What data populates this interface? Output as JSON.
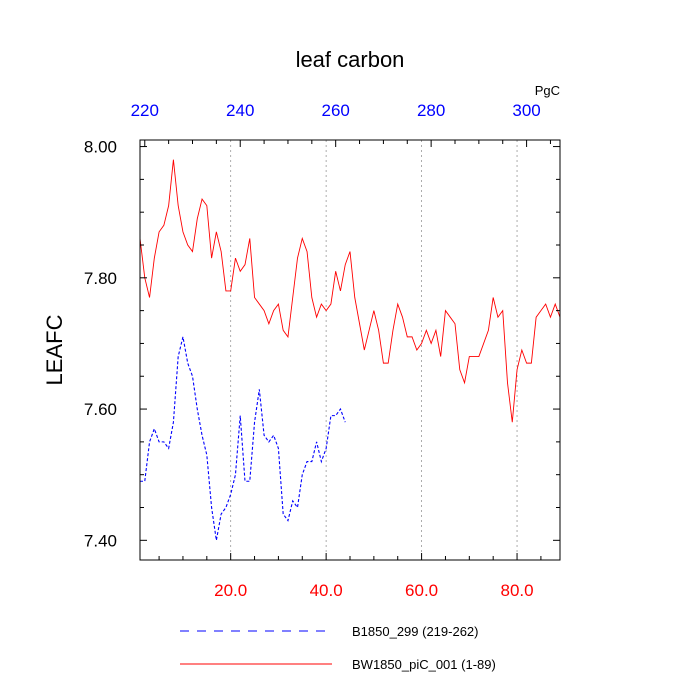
{
  "chart_data": {
    "type": "line",
    "title": "leaf carbon",
    "ylabel": "LEAFC",
    "top_axis_units": "PgC",
    "ylim": [
      7.37,
      8.01
    ],
    "xlim": [
      1,
      89
    ],
    "top_xlim": [
      219,
      307
    ],
    "yticks": [
      {
        "value": 7.4,
        "label": "7.40"
      },
      {
        "value": 7.6,
        "label": "7.60"
      },
      {
        "value": 7.8,
        "label": "7.80"
      },
      {
        "value": 8.0,
        "label": "8.00"
      }
    ],
    "xticks_bottom": [
      {
        "value": 20,
        "label": "20.0"
      },
      {
        "value": 40,
        "label": "40.0"
      },
      {
        "value": 60,
        "label": "60.0"
      },
      {
        "value": 80,
        "label": "80.0"
      }
    ],
    "xticks_top": [
      {
        "value": 220,
        "label": "220"
      },
      {
        "value": 240,
        "label": "240"
      },
      {
        "value": 260,
        "label": "260"
      },
      {
        "value": 280,
        "label": "280"
      },
      {
        "value": 300,
        "label": "300"
      }
    ],
    "grid_x": [
      20,
      40,
      60,
      80
    ],
    "colors": {
      "bottom_axis_labels": "#ff0000",
      "top_axis_labels": "#0000ff"
    },
    "legend_placement": "bottom",
    "series": [
      {
        "name": "B1850_299 (219-262)",
        "color": "#0000ff",
        "dash": "dashed",
        "axis": "top",
        "x": [
          219,
          220,
          221,
          222,
          223,
          224,
          225,
          226,
          227,
          228,
          229,
          230,
          231,
          232,
          233,
          234,
          235,
          236,
          237,
          238,
          239,
          240,
          241,
          242,
          243,
          244,
          245,
          246,
          247,
          248,
          249,
          250,
          251,
          252,
          253,
          254,
          255,
          256,
          257,
          258,
          259,
          260,
          261,
          262
        ],
        "y": [
          7.49,
          7.49,
          7.55,
          7.57,
          7.55,
          7.55,
          7.54,
          7.58,
          7.68,
          7.71,
          7.67,
          7.65,
          7.6,
          7.56,
          7.53,
          7.45,
          7.4,
          7.44,
          7.45,
          7.47,
          7.5,
          7.59,
          7.49,
          7.49,
          7.58,
          7.63,
          7.56,
          7.55,
          7.56,
          7.54,
          7.44,
          7.43,
          7.46,
          7.45,
          7.5,
          7.52,
          7.52,
          7.55,
          7.52,
          7.54,
          7.59,
          7.59,
          7.6,
          7.58
        ]
      },
      {
        "name": "BW1850_piC_001 (1-89)",
        "color": "#ff0000",
        "dash": "solid",
        "axis": "bottom",
        "x": [
          1,
          2,
          3,
          4,
          5,
          6,
          7,
          8,
          9,
          10,
          11,
          12,
          13,
          14,
          15,
          16,
          17,
          18,
          19,
          20,
          21,
          22,
          23,
          24,
          25,
          26,
          27,
          28,
          29,
          30,
          31,
          32,
          33,
          34,
          35,
          36,
          37,
          38,
          39,
          40,
          41,
          42,
          43,
          44,
          45,
          46,
          47,
          48,
          49,
          50,
          51,
          52,
          53,
          54,
          55,
          56,
          57,
          58,
          59,
          60,
          61,
          62,
          63,
          64,
          65,
          66,
          67,
          68,
          69,
          70,
          71,
          72,
          73,
          74,
          75,
          76,
          77,
          78,
          79,
          80,
          81,
          82,
          83,
          84,
          85,
          86,
          87,
          88,
          89
        ],
        "y": [
          7.86,
          7.8,
          7.77,
          7.83,
          7.87,
          7.88,
          7.91,
          7.98,
          7.91,
          7.87,
          7.85,
          7.84,
          7.89,
          7.92,
          7.91,
          7.83,
          7.87,
          7.84,
          7.78,
          7.78,
          7.83,
          7.81,
          7.82,
          7.86,
          7.77,
          7.76,
          7.75,
          7.73,
          7.75,
          7.76,
          7.72,
          7.71,
          7.77,
          7.83,
          7.86,
          7.84,
          7.77,
          7.74,
          7.76,
          7.75,
          7.76,
          7.81,
          7.78,
          7.82,
          7.84,
          7.77,
          7.73,
          7.69,
          7.72,
          7.75,
          7.72,
          7.67,
          7.67,
          7.72,
          7.76,
          7.74,
          7.71,
          7.71,
          7.69,
          7.7,
          7.72,
          7.7,
          7.72,
          7.68,
          7.75,
          7.74,
          7.73,
          7.66,
          7.64,
          7.68,
          7.68,
          7.68,
          7.7,
          7.72,
          7.77,
          7.74,
          7.75,
          7.64,
          7.58,
          7.66,
          7.69,
          7.67,
          7.67,
          7.74,
          7.75,
          7.76,
          7.74,
          7.76,
          7.74
        ]
      }
    ]
  }
}
